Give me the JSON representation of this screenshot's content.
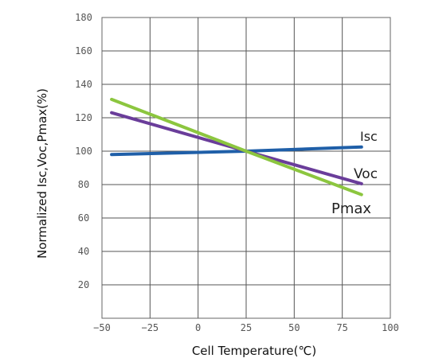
{
  "chart_data": {
    "type": "line",
    "xlabel": "Cell Temperature(℃)",
    "ylabel": "Normalized Isc,Voc,Pmax(%)",
    "xlim": [
      -50,
      100
    ],
    "ylim": [
      0,
      180
    ],
    "x_ticks": [
      -50,
      -25,
      0,
      25,
      50,
      75,
      100
    ],
    "y_ticks": [
      20,
      40,
      60,
      80,
      100,
      120,
      140,
      160,
      180
    ],
    "x_tick_labels": [
      "−50",
      "−25",
      "0",
      "25",
      "50",
      "75",
      "100"
    ],
    "y_tick_labels": [
      "20",
      "40",
      "60",
      "80",
      "100",
      "120",
      "140",
      "160",
      "180"
    ],
    "grid": true,
    "series": [
      {
        "name": "Isc",
        "color": "#1f5fa8",
        "x": [
          -45,
          25,
          85
        ],
        "y": [
          98,
          100,
          102.5
        ]
      },
      {
        "name": "Voc",
        "color": "#6a3d9a",
        "x": [
          -45,
          25,
          85
        ],
        "y": [
          123,
          100,
          80.5
        ]
      },
      {
        "name": "Pmax",
        "color": "#8cc63f",
        "x": [
          -45,
          25,
          85
        ],
        "y": [
          131,
          100,
          74
        ]
      }
    ]
  }
}
